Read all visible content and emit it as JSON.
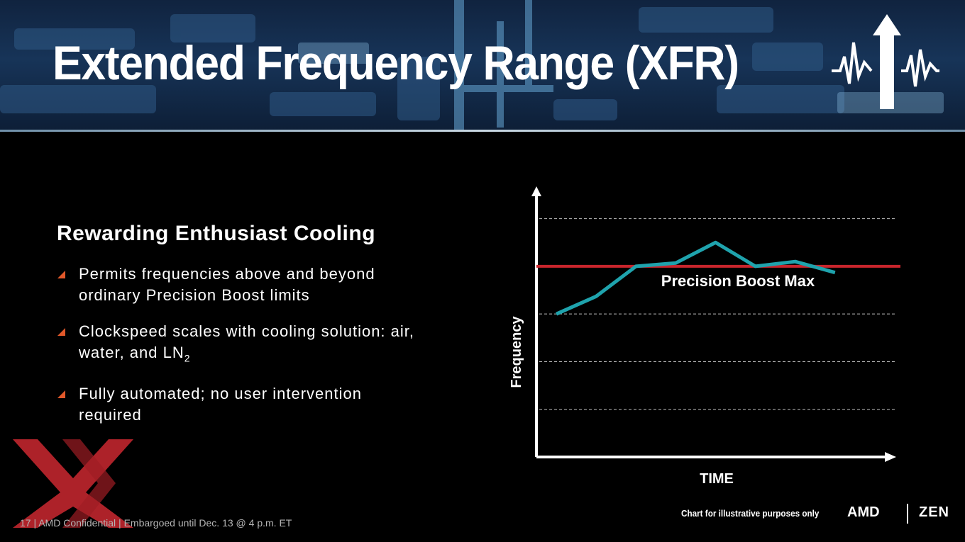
{
  "header": {
    "title": "Extended Frequency Range (XFR)"
  },
  "content": {
    "subtitle": "Rewarding Enthusiast Cooling",
    "bullets": [
      {
        "text": "Permits frequencies above and beyond ordinary Precision Boost limits"
      },
      {
        "text": "Clockspeed scales with cooling solution: air, water, and LN",
        "subscript": "2"
      },
      {
        "text": "Fully automated; no user intervention required"
      }
    ]
  },
  "chart_data": {
    "type": "line",
    "title": "",
    "xlabel": "TIME",
    "ylabel": "Frequency",
    "x": [
      1,
      2,
      3,
      4,
      5,
      6,
      7,
      8
    ],
    "series": [
      {
        "values": [
          3.0,
          3.37,
          4.0,
          4.07,
          4.5,
          4.0,
          4.1,
          3.87
        ]
      }
    ],
    "reference_line": {
      "label": "Precision Boost Max",
      "value": 4.0
    },
    "gridlines_y": [
      1,
      2,
      3,
      5
    ],
    "ylim": [
      0,
      5.5
    ],
    "xlim": [
      0.5,
      9.5
    ],
    "grid": true,
    "colors": {
      "series": "#1fa3ad",
      "reference": "#c8252c",
      "axes": "#ffffff",
      "grid": "#bdbdbd"
    }
  },
  "footer": {
    "text": "17 | AMD Confidential | Embargoed until Dec. 13 @ 4 p.m. ET",
    "chart_note": "Chart for illustrative purposes only",
    "amd_logo": "AMD",
    "zen_logo": "ZEN"
  },
  "colors": {
    "accent": "#e1582a",
    "xx_logo": "#c0262d"
  }
}
